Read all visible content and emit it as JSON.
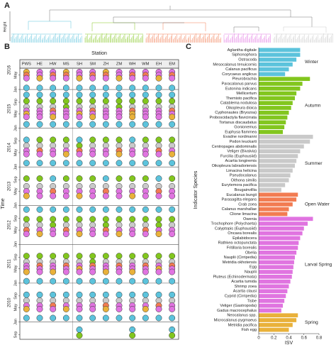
{
  "panels": [
    "A",
    "B",
    "C"
  ],
  "dendrogram": {
    "ylabel": "Height"
  },
  "chart_data": [
    {
      "type": "dot_matrix",
      "xlabel": "Station",
      "ylabel": "Time",
      "categories": [
        "PWS",
        "HE",
        "HW",
        "MS",
        "SH",
        "SM",
        "ZH",
        "ZM",
        "WH",
        "WM",
        "EH",
        "EM"
      ],
      "ylim": [
        2009.55,
        2016.55
      ],
      "yticks": [
        {
          "value": 2016.37,
          "label": "May"
        },
        {
          "value": 2016.0,
          "label": "Jan"
        },
        {
          "value": 2015.67,
          "label": "Sep"
        },
        {
          "value": 2015.37,
          "label": "May"
        },
        {
          "value": 2015.0,
          "label": "Jan"
        },
        {
          "value": 2014.67,
          "label": "Sep"
        },
        {
          "value": 2014.37,
          "label": "May"
        },
        {
          "value": 2014.0,
          "label": "Jan"
        },
        {
          "value": 2013.67,
          "label": "Sep"
        },
        {
          "value": 2013.37,
          "label": "May"
        },
        {
          "value": 2013.0,
          "label": "Jan"
        },
        {
          "value": 2012.67,
          "label": "Sep"
        },
        {
          "value": 2012.37,
          "label": "May"
        },
        {
          "value": 2012.0,
          "label": "Jan"
        },
        {
          "value": 2011.67,
          "label": "Sep"
        },
        {
          "value": 2011.37,
          "label": "May"
        },
        {
          "value": 2011.0,
          "label": "Jan"
        },
        {
          "value": 2010.67,
          "label": "Sep"
        },
        {
          "value": 2010.37,
          "label": "May"
        },
        {
          "value": 2010.0,
          "label": "Jan"
        },
        {
          "value": 2009.67,
          "label": "Sep"
        }
      ],
      "year_labels": [
        {
          "value": 2016,
          "label": "2016"
        },
        {
          "value": 2015,
          "label": "2015"
        },
        {
          "value": 2014,
          "label": "2014"
        },
        {
          "value": 2013,
          "label": "2013"
        },
        {
          "value": 2012,
          "label": "2012"
        },
        {
          "value": 2011,
          "label": "2011"
        },
        {
          "value": 2010,
          "label": "2010"
        }
      ],
      "cluster_colors": [
        "#5cc3dc",
        "#82c61e",
        "#c9c9c9",
        "#f27c52",
        "#e074e0",
        "#e9b13a"
      ],
      "rows": [
        {
          "t": 2016.45,
          "clusters": [
            5,
            4,
            4,
            5,
            4,
            4,
            5,
            4,
            4,
            4,
            4,
            4
          ]
        },
        {
          "t": 2016.37,
          "clusters": [
            3,
            4,
            3,
            3,
            4,
            3,
            3,
            4,
            3,
            3,
            4,
            3
          ]
        },
        {
          "t": 2016.29,
          "clusters": [
            4,
            5,
            4,
            4,
            5,
            4,
            4,
            5,
            4,
            4,
            5,
            4
          ]
        },
        {
          "t": 2016.04,
          "clusters": [
            0,
            0,
            0,
            0,
            0,
            0,
            0,
            0,
            0,
            0,
            0,
            0
          ]
        },
        {
          "t": 2015.86,
          "clusters": [
            0,
            0,
            0,
            0,
            0,
            0,
            0,
            0,
            0,
            0,
            0,
            0
          ]
        },
        {
          "t": 2015.7,
          "clusters": [
            1,
            1,
            1,
            1,
            1,
            1,
            1,
            1,
            1,
            1,
            1,
            1
          ]
        },
        {
          "t": 2015.55,
          "clusters": [
            2,
            2,
            2,
            1,
            2,
            2,
            2,
            1,
            2,
            2,
            2,
            2
          ]
        },
        {
          "t": 2015.45,
          "clusters": [
            4,
            4,
            3,
            4,
            4,
            3,
            4,
            4,
            3,
            4,
            4,
            3
          ]
        },
        {
          "t": 2015.37,
          "clusters": [
            5,
            4,
            4,
            4,
            5,
            4,
            4,
            4,
            5,
            4,
            4,
            4
          ]
        },
        {
          "t": 2015.29,
          "clusters": [
            4,
            4,
            5,
            4,
            4,
            5,
            4,
            4,
            5,
            4,
            4,
            5
          ]
        },
        {
          "t": 2015.1,
          "clusters": [
            0,
            0,
            0,
            0,
            0,
            0,
            0,
            0,
            0,
            0,
            0,
            0
          ]
        },
        {
          "t": 2014.7,
          "clusters": [
            0,
            1,
            1,
            1,
            0,
            1,
            1,
            1,
            0,
            1,
            1,
            1
          ]
        },
        {
          "t": 2014.55,
          "clusters": [
            2,
            2,
            2,
            2,
            1,
            2,
            2,
            2,
            2,
            2,
            2,
            2
          ]
        },
        {
          "t": 2014.42,
          "clusters": [
            4,
            3,
            4,
            4,
            3,
            4,
            4,
            3,
            4,
            4,
            3,
            4
          ]
        },
        {
          "t": 2014.33,
          "clusters": [
            4,
            4,
            4,
            5,
            4,
            4,
            4,
            5,
            4,
            4,
            4,
            5
          ]
        },
        {
          "t": 2014.1,
          "clusters": [
            0,
            0,
            0,
            0,
            0,
            0,
            0,
            0,
            0,
            0,
            0,
            0
          ]
        },
        {
          "t": 2013.7,
          "clusters": [
            1,
            1,
            0,
            1,
            1,
            1,
            0,
            1,
            1,
            1,
            0,
            1
          ]
        },
        {
          "t": 2013.5,
          "clusters": [
            2,
            2,
            2,
            2,
            2,
            2,
            2,
            2,
            2,
            2,
            2,
            2
          ]
        },
        {
          "t": 2013.37,
          "clusters": [
            4,
            4,
            3,
            4,
            4,
            4,
            3,
            4,
            4,
            4,
            3,
            4
          ]
        },
        {
          "t": 2013.25,
          "clusters": [
            5,
            4,
            4,
            4,
            5,
            4,
            4,
            4,
            5,
            4,
            4,
            4
          ]
        },
        {
          "t": 2012.9,
          "clusters": [
            0,
            0,
            0,
            0,
            0,
            0,
            0,
            0,
            0,
            0,
            0,
            0
          ]
        },
        {
          "t": 2012.65,
          "clusters": [
            1,
            1,
            1,
            1,
            1,
            1,
            1,
            1,
            1,
            1,
            1,
            1
          ]
        },
        {
          "t": 2012.5,
          "clusters": [
            2,
            2,
            1,
            2,
            2,
            2,
            1,
            2,
            2,
            2,
            1,
            2
          ]
        },
        {
          "t": 2012.37,
          "clusters": [
            3,
            4,
            4,
            3,
            4,
            4,
            3,
            4,
            4,
            3,
            4,
            4
          ]
        },
        {
          "t": 2012.27,
          "clusters": [
            4,
            5,
            4,
            4,
            5,
            4,
            4,
            5,
            4,
            4,
            5,
            4
          ]
        },
        {
          "t": 2011.7,
          "clusters": [
            1,
            1,
            1,
            1,
            1,
            1,
            1,
            1,
            1,
            1,
            1,
            1
          ]
        },
        {
          "t": 2011.55,
          "clusters": [
            2,
            2,
            2,
            2,
            2,
            1,
            2,
            2,
            2,
            2,
            2,
            2
          ]
        },
        {
          "t": 2011.45,
          "clusters": [
            4,
            3,
            4,
            3,
            4,
            3,
            4,
            3,
            4,
            3,
            4,
            3
          ]
        },
        {
          "t": 2011.37,
          "clusters": [
            4,
            4,
            4,
            4,
            5,
            4,
            4,
            4,
            4,
            4,
            5,
            4
          ]
        },
        {
          "t": 2011.29,
          "clusters": [
            5,
            4,
            5,
            4,
            4,
            4,
            5,
            4,
            5,
            4,
            4,
            4
          ]
        },
        {
          "t": 2011.05,
          "clusters": [
            0,
            0,
            0,
            0,
            0,
            0,
            0,
            0,
            0,
            0,
            0,
            0
          ]
        },
        {
          "t": 2010.7,
          "clusters": [
            0,
            0,
            0,
            0,
            0,
            0,
            0,
            0,
            0,
            0,
            0,
            0
          ]
        },
        {
          "t": 2010.55,
          "clusters": [
            2,
            2,
            2,
            2,
            2,
            2,
            2,
            2,
            2,
            2,
            2,
            2
          ]
        },
        {
          "t": 2010.42,
          "clusters": [
            4,
            4,
            3,
            4,
            4,
            4,
            3,
            4,
            4,
            4,
            3,
            4
          ]
        },
        {
          "t": 2010.33,
          "clusters": [
            5,
            4,
            4,
            5,
            4,
            4,
            5,
            4,
            4,
            5,
            4,
            4
          ]
        },
        {
          "t": 2010.1,
          "clusters": [
            0,
            0,
            0,
            0,
            0,
            0,
            0,
            0,
            0,
            0,
            0,
            0
          ]
        },
        {
          "t": 2009.8,
          "clusters": [
            null,
            null,
            null,
            null,
            0,
            null,
            null,
            null,
            0,
            null,
            null,
            0
          ]
        },
        {
          "t": 2009.65,
          "clusters": [
            null,
            null,
            null,
            null,
            1,
            null,
            null,
            null,
            1,
            null,
            null,
            1
          ]
        }
      ]
    },
    {
      "type": "hbar",
      "xlabel": "ISV",
      "ylabel": "Indicator Species",
      "xlim": [
        0,
        0.8
      ],
      "xticks": [
        0,
        0.2,
        0.4,
        0.6,
        0.8
      ],
      "series": [
        {
          "name": "Winter",
          "color": "#5cc3dc",
          "categories": [
            "Aglantha digitale",
            "Siphonophora",
            "Ostracoda",
            "Mesocalanus tenuicornis",
            "Calanus pacificus",
            "Corycaeus anglicus"
          ],
          "values": [
            0.55,
            0.55,
            0.5,
            0.45,
            0.4,
            0.35
          ]
        },
        {
          "name": "Autumn",
          "color": "#82c61e",
          "categories": [
            "Pleurobrachia",
            "Paracalanus parvus",
            "Eutonina indicans",
            "Mellicertum",
            "Themisto pacifica",
            "Catablema nodulosa",
            "Oikopleura dioica",
            "Cyphonautes (Bryozoa)",
            "Proboscidactyla flavicirrata",
            "Tortanus discaudatus",
            "Gonionemus",
            "Euphysa flammea"
          ],
          "values": [
            0.68,
            0.58,
            0.55,
            0.5,
            0.48,
            0.45,
            0.43,
            0.4,
            0.38,
            0.36,
            0.34,
            0.32
          ]
        },
        {
          "name": "Summer",
          "color": "#c9c9c9",
          "categories": [
            "Evadne nordmanni",
            "Podon leuckarti",
            "Centropages abdominalis",
            "Veliger (Bivalvia)",
            "Furcilia (Euphausiid)",
            "Acartia longiremis",
            "Oikopleura labradoriensis",
            "Limacina helicina",
            "Pseudocalanus",
            "Oithona similis",
            "Eurytemora pacifica",
            "Bougainvillia"
          ],
          "values": [
            0.72,
            0.68,
            0.6,
            0.55,
            0.52,
            0.5,
            0.48,
            0.45,
            0.42,
            0.4,
            0.35,
            0.3
          ]
        },
        {
          "name": "Open Water",
          "color": "#f27c52",
          "categories": [
            "Eucalanus bungii",
            "Parasagitta elegans",
            "Crab zoea",
            "Calanus marshallae",
            "Clione limacina"
          ],
          "values": [
            0.52,
            0.5,
            0.45,
            0.4,
            0.38
          ]
        },
        {
          "name": "Larval Spring",
          "color": "#e074e0",
          "categories": [
            "Owenia",
            "Trochophore (Polychaeta)",
            "Calyptopis (Euphausiid)",
            "Oncaea borealis",
            "Epilabidocera",
            "Rathkea octopunctata",
            "Fritillaria borealis",
            "Obelia",
            "Nauplii (Cirripedia)",
            "Metridia okhotensis",
            "Egg",
            "Nauplii",
            "Pluteus (Echinodermata)",
            "Acartia tumida",
            "Shrimp zoea",
            "Acartia clausi",
            "Cyprid (Cirripedia)",
            "Tisbe",
            "Veliger (Gastropoda)",
            "Gadus macrocephalus"
          ],
          "values": [
            0.72,
            0.65,
            0.6,
            0.58,
            0.55,
            0.53,
            0.52,
            0.5,
            0.48,
            0.47,
            0.46,
            0.45,
            0.44,
            0.42,
            0.4,
            0.38,
            0.36,
            0.34,
            0.32,
            0.3
          ]
        },
        {
          "name": "Spring",
          "color": "#e9b13a",
          "categories": [
            "Neocalanus spp.",
            "Microcalanus pygmaeus",
            "Metridia pacifica",
            "Fish egg"
          ],
          "values": [
            0.52,
            0.5,
            0.45,
            0.4
          ]
        }
      ]
    }
  ]
}
